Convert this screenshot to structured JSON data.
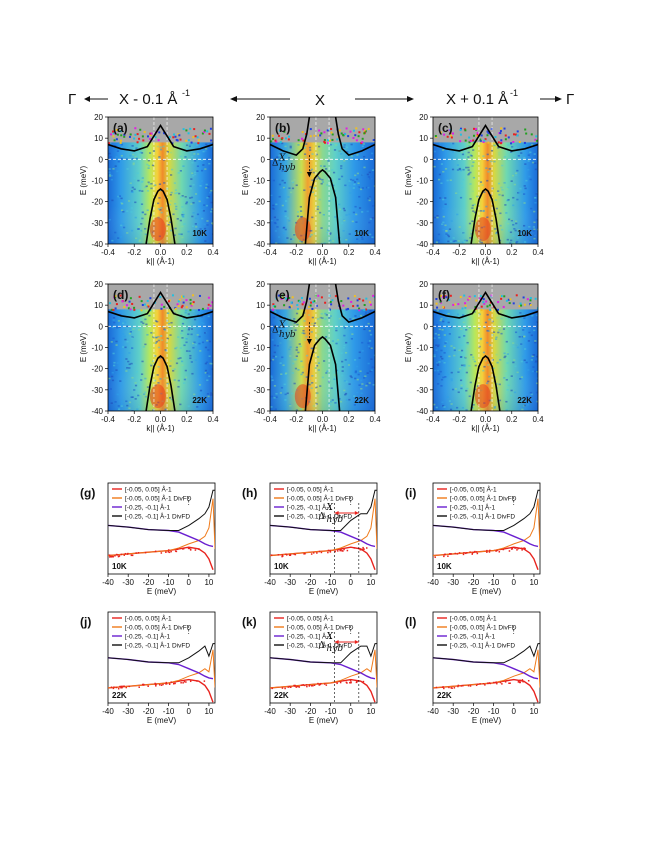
{
  "header": {
    "left_gamma": "Γ",
    "left_label": "X - 0.1 Å",
    "left_sup": "-1",
    "center_label": "X",
    "right_label": "X + 0.1 Å",
    "right_sup": "-1",
    "right_gamma": "Γ"
  },
  "arpes_axes": {
    "ylabel": "E (meV)",
    "xlabel": "k|| (Å-1)",
    "yticks": [
      "20",
      "10",
      "0",
      "-10",
      "-20",
      "-30",
      "-40"
    ],
    "xticks": [
      "-0.4",
      "-0.2",
      "0.0",
      "0.2",
      "0.4"
    ],
    "ylim": [
      -40,
      20
    ],
    "xlim": [
      -0.4,
      0.4
    ]
  },
  "edc_axes": {
    "xlabel": "E (meV)",
    "xticks": [
      "-40",
      "-30",
      "-20",
      "-10",
      "0",
      "10"
    ],
    "xlim": [
      -40,
      13
    ]
  },
  "legend_items": [
    {
      "label": "[-0.05, 0.05] Å-1",
      "color": "#e8231e"
    },
    {
      "label": "[-0.05, 0.05] Å-1 DivFD",
      "color": "#f07a1a"
    },
    {
      "label": "[-0.25, -0.1] Å-1",
      "color": "#6a1fd0"
    },
    {
      "label": "[-0.25, -0.1] Å-1 DivFD",
      "color": "#111111"
    }
  ],
  "gap_label": {
    "symbol": "Δ",
    "sup": "X",
    "sub": "hyb"
  },
  "panels_top": [
    {
      "label": "(a)",
      "temp": "10K",
      "kind": "side"
    },
    {
      "label": "(b)",
      "temp": "10K",
      "kind": "center"
    },
    {
      "label": "(c)",
      "temp": "10K",
      "kind": "side"
    },
    {
      "label": "(d)",
      "temp": "22K",
      "kind": "side"
    },
    {
      "label": "(e)",
      "temp": "22K",
      "kind": "center"
    },
    {
      "label": "(f)",
      "temp": "22K",
      "kind": "side"
    }
  ],
  "panels_edc": [
    {
      "label": "(g)",
      "temp": "10K",
      "gap": false
    },
    {
      "label": "(h)",
      "temp": "10K",
      "gap": true
    },
    {
      "label": "(i)",
      "temp": "10K",
      "gap": false
    },
    {
      "label": "(j)",
      "temp": "22K",
      "gap": false
    },
    {
      "label": "(k)",
      "temp": "22K",
      "gap": true
    },
    {
      "label": "(l)",
      "temp": "22K",
      "gap": false
    }
  ],
  "chart_data": [
    {
      "type": "heatmap",
      "panel": "(a)-(f)",
      "description_axes": {
        "x": "k|| (Å-1)",
        "y": "E (meV)"
      },
      "xlim": [
        -0.4,
        0.4
      ],
      "ylim": [
        -40,
        20
      ],
      "bands_side": [
        {
          "name": "",
          "x": [
            -0.4,
            -0.3,
            -0.2,
            -0.1,
            -0.05,
            0.0,
            0.05,
            0.1,
            0.2,
            0.3,
            0.4
          ],
          "y": [
            7,
            5,
            4,
            6,
            11,
            16,
            11,
            6,
            4,
            5,
            7
          ]
        },
        {
          "name": "",
          "x": [
            -0.11,
            -0.08,
            -0.05,
            -0.02,
            0.0,
            0.02,
            0.05,
            0.08,
            0.11
          ],
          "y": [
            -40,
            -28,
            -19,
            -15,
            -14,
            -15,
            -19,
            -28,
            -40
          ]
        }
      ],
      "bands_center": [
        {
          "name": "",
          "x": [
            -0.4,
            -0.3,
            -0.2,
            -0.15,
            -0.12,
            -0.1
          ],
          "y": [
            7,
            4,
            2,
            5,
            12,
            20
          ]
        },
        {
          "name": "",
          "x": [
            0.1,
            0.12,
            0.15,
            0.2,
            0.3,
            0.4
          ],
          "y": [
            20,
            12,
            5,
            2,
            4,
            7
          ]
        },
        {
          "name": "",
          "x": [
            -0.13,
            -0.1,
            -0.06,
            -0.02,
            0.0,
            0.02,
            0.06,
            0.1,
            0.13
          ],
          "y": [
            -40,
            -18,
            -9,
            -6,
            -5,
            -6,
            -9,
            -18,
            -40
          ]
        }
      ]
    },
    {
      "type": "line",
      "panel": "(g)-(l)",
      "xlabel": "E (meV)",
      "xlim": [
        -40,
        13
      ],
      "series": [
        {
          "name": "[-0.05, 0.05] Å-1",
          "x": [
            -40,
            -30,
            -20,
            -10,
            -5,
            0,
            5,
            8,
            10,
            12
          ],
          "y": [
            0.22,
            0.24,
            0.26,
            0.28,
            0.3,
            0.32,
            0.3,
            0.25,
            0.18,
            0.05
          ]
        },
        {
          "name": "[-0.05, 0.05] Å-1 DivFD",
          "x": [
            -40,
            -30,
            -20,
            -10,
            -5,
            0,
            5,
            8,
            10,
            12,
            13
          ],
          "y": [
            0.22,
            0.24,
            0.26,
            0.28,
            0.31,
            0.36,
            0.4,
            0.45,
            0.55,
            0.9,
            0.3
          ]
        },
        {
          "name": "[-0.25, -0.1] Å-1",
          "x": [
            -40,
            -30,
            -20,
            -10,
            -5,
            0,
            5,
            8,
            10,
            12
          ],
          "y": [
            0.58,
            0.56,
            0.53,
            0.52,
            0.5,
            0.45,
            0.4,
            0.36,
            0.34,
            0.33
          ]
        },
        {
          "name": "[-0.25, -0.1] Å-1 DivFD",
          "x": [
            -40,
            -30,
            -20,
            -10,
            -5,
            0,
            5,
            8,
            10,
            12,
            13
          ],
          "y": [
            0.58,
            0.56,
            0.53,
            0.52,
            0.52,
            0.58,
            0.66,
            0.72,
            0.8,
            1.0,
            1.0
          ]
        }
      ]
    }
  ]
}
